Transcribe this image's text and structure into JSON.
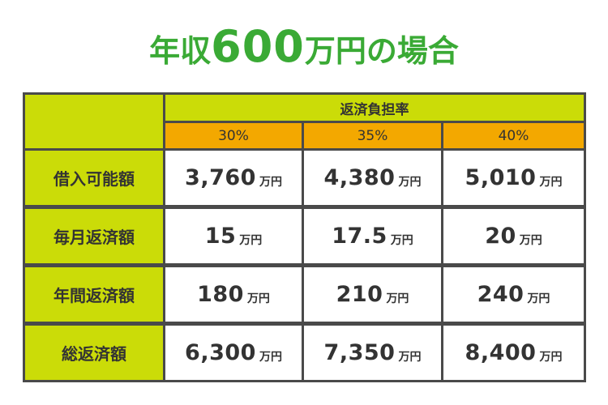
{
  "title": {
    "prefix": "年収",
    "number": "600",
    "suffix": "万円の場合"
  },
  "colors": {
    "title": "#3aaa35",
    "header_green": "#cbdc08",
    "header_orange": "#f3a800",
    "grid_line": "#4a4a4a",
    "text": "#333333"
  },
  "chart_data": {
    "type": "table",
    "title": "年収600万円の場合",
    "column_group_header": "返済負担率",
    "columns": [
      "30%",
      "35%",
      "40%"
    ],
    "unit": "万円",
    "rows": [
      {
        "label": "借入可能額",
        "values": [
          "3,760",
          "4,380",
          "5,010"
        ]
      },
      {
        "label": "毎月返済額",
        "values": [
          "15",
          "17.5",
          "20"
        ]
      },
      {
        "label": "年間返済額",
        "values": [
          "180",
          "210",
          "240"
        ]
      },
      {
        "label": "総返済額",
        "values": [
          "6,300",
          "7,350",
          "8,400"
        ]
      }
    ]
  }
}
